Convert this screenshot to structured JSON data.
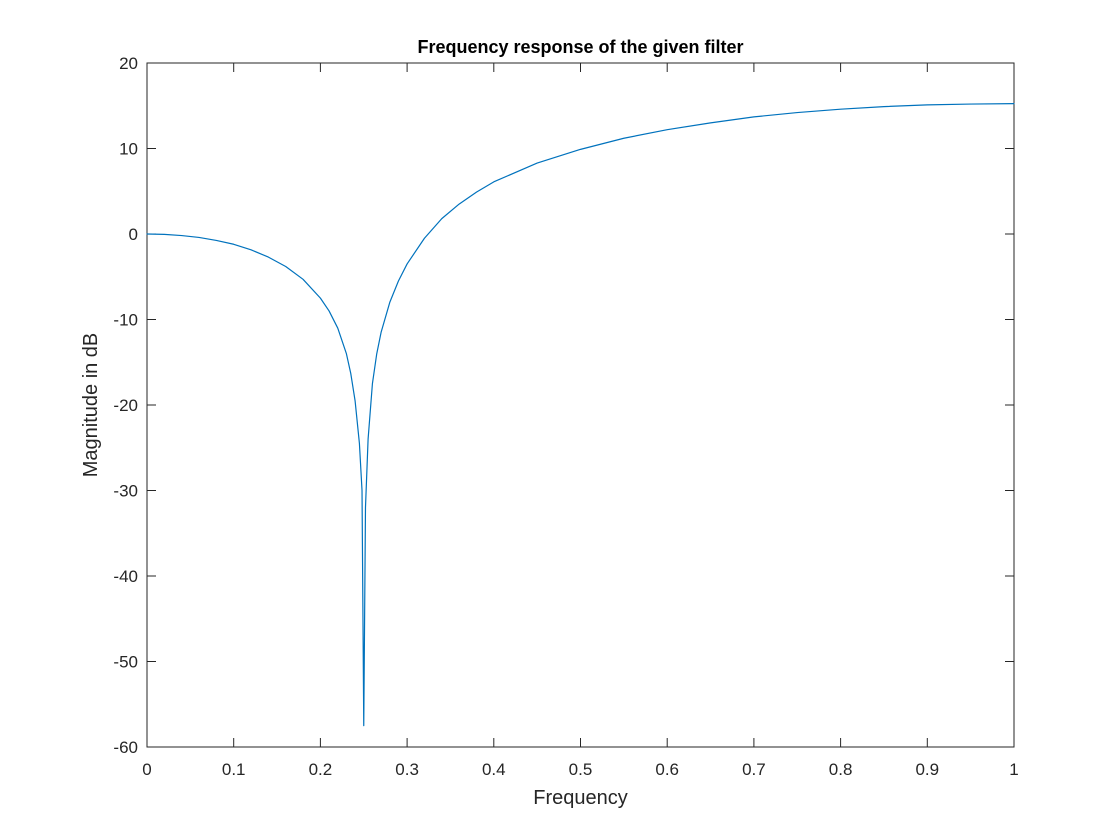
{
  "chart_data": {
    "type": "line",
    "title": "Frequency response of the given filter",
    "xlabel": "Frequency",
    "ylabel": "Magnitude in dB",
    "xlim": [
      0,
      1
    ],
    "ylim": [
      -60,
      20
    ],
    "xticks": [
      0,
      0.1,
      0.2,
      0.3,
      0.4,
      0.5,
      0.6,
      0.7,
      0.8,
      0.9,
      1
    ],
    "xtick_labels": [
      "0",
      "0.1",
      "0.2",
      "0.3",
      "0.4",
      "0.5",
      "0.6",
      "0.7",
      "0.8",
      "0.9",
      "1"
    ],
    "yticks": [
      -60,
      -50,
      -40,
      -30,
      -20,
      -10,
      0,
      10,
      20
    ],
    "ytick_labels": [
      "-60",
      "-50",
      "-40",
      "-30",
      "-20",
      "-10",
      "0",
      "10",
      "20"
    ],
    "grid": false,
    "legend": "none",
    "series": [
      {
        "color": "#0072BD",
        "x": [
          0,
          0.02,
          0.04,
          0.06,
          0.08,
          0.1,
          0.12,
          0.14,
          0.16,
          0.18,
          0.2,
          0.21,
          0.22,
          0.23,
          0.235,
          0.24,
          0.245,
          0.248,
          0.25,
          0.252,
          0.255,
          0.26,
          0.265,
          0.27,
          0.28,
          0.29,
          0.3,
          0.32,
          0.34,
          0.36,
          0.38,
          0.4,
          0.45,
          0.5,
          0.55,
          0.6,
          0.65,
          0.7,
          0.75,
          0.8,
          0.85,
          0.9,
          0.95,
          1.0
        ],
        "y": [
          0,
          -0.04,
          -0.18,
          -0.4,
          -0.75,
          -1.2,
          -1.85,
          -2.7,
          -3.8,
          -5.3,
          -7.5,
          -9.0,
          -11.0,
          -14.0,
          -16.3,
          -19.5,
          -24.5,
          -30.0,
          -57.5,
          -32.0,
          -24.0,
          -17.5,
          -14.0,
          -11.5,
          -8.0,
          -5.5,
          -3.5,
          -0.5,
          1.8,
          3.5,
          4.9,
          6.1,
          8.3,
          9.9,
          11.2,
          12.2,
          13.0,
          13.7,
          14.2,
          14.6,
          14.9,
          15.1,
          15.2,
          15.25
        ]
      }
    ]
  }
}
